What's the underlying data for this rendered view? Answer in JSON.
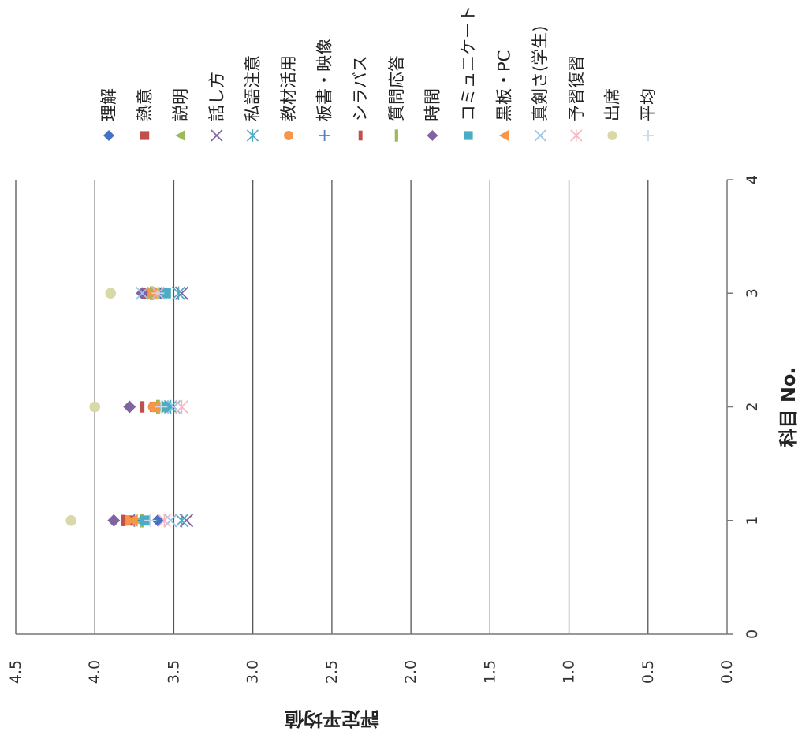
{
  "chart_data": {
    "type": "scatter",
    "orientation": "rotated-90-clockwise",
    "xlabel": "科目 No.",
    "ylabel": "評定平均値",
    "xlim": [
      0,
      4
    ],
    "ylim": [
      0,
      4.5
    ],
    "x_ticks": [
      "0",
      "1",
      "2",
      "3",
      "4"
    ],
    "y_ticks": [
      "0.0",
      "0.5",
      "1.0",
      "1.5",
      "2.0",
      "2.5",
      "3.0",
      "3.5",
      "4.0",
      "4.5"
    ],
    "grid": true,
    "legend_position": "right",
    "series": [
      {
        "name": "理解",
        "marker": "diamond",
        "color": "#4472C4",
        "x": [
          1,
          2,
          3
        ],
        "y": [
          3.6,
          3.55,
          3.58
        ]
      },
      {
        "name": "熱意",
        "marker": "square",
        "color": "#C0504D",
        "x": [
          1,
          2,
          3
        ],
        "y": [
          3.78,
          3.62,
          3.65
        ]
      },
      {
        "name": "説明",
        "marker": "triangle",
        "color": "#9BBB59",
        "x": [
          1,
          2,
          3
        ],
        "y": [
          3.72,
          3.6,
          3.62
        ]
      },
      {
        "name": "話し方",
        "marker": "x",
        "color": "#8064A2",
        "x": [
          1,
          2,
          3
        ],
        "y": [
          3.42,
          3.5,
          3.45
        ]
      },
      {
        "name": "私語注意",
        "marker": "star",
        "color": "#4BACC6",
        "x": [
          1,
          2,
          3
        ],
        "y": [
          3.45,
          3.52,
          3.47
        ]
      },
      {
        "name": "教材活用",
        "marker": "circle",
        "color": "#F79646",
        "x": [
          1,
          2,
          3
        ],
        "y": [
          3.8,
          3.63,
          3.66
        ]
      },
      {
        "name": "板書・映像",
        "marker": "plus",
        "color": "#4F81BD",
        "x": [
          1,
          2,
          3
        ],
        "y": [
          3.75,
          3.58,
          3.62
        ]
      },
      {
        "name": "シラバス",
        "marker": "dash-short",
        "color": "#C0504D",
        "x": [
          1,
          2,
          3
        ],
        "y": [
          3.82,
          3.7,
          3.68
        ]
      },
      {
        "name": "質問応答",
        "marker": "dash",
        "color": "#9BBB59",
        "x": [
          1,
          2,
          3
        ],
        "y": [
          3.7,
          3.6,
          3.64
        ]
      },
      {
        "name": "時間",
        "marker": "diamond",
        "color": "#8064A2",
        "x": [
          1,
          2,
          3
        ],
        "y": [
          3.88,
          3.78,
          3.7
        ]
      },
      {
        "name": "コミュニケート",
        "marker": "square",
        "color": "#4BACC6",
        "x": [
          1,
          2,
          3
        ],
        "y": [
          3.68,
          3.55,
          3.55
        ]
      },
      {
        "name": "黒板・PC",
        "marker": "triangle",
        "color": "#F79646",
        "x": [
          1,
          2,
          3
        ],
        "y": [
          3.76,
          3.62,
          3.63
        ]
      },
      {
        "name": "真剣さ(学生)",
        "marker": "x",
        "color": "#9DC3E6",
        "x": [
          1,
          2,
          3
        ],
        "y": [
          3.52,
          3.5,
          3.7
        ]
      },
      {
        "name": "予習復習",
        "marker": "star",
        "color": "#F4B6C2",
        "x": [
          1,
          2,
          3
        ],
        "y": [
          3.56,
          3.45,
          3.6
        ]
      },
      {
        "name": "出席",
        "marker": "circle",
        "color": "#D8D8A8",
        "x": [
          1,
          2,
          3
        ],
        "y": [
          4.15,
          4.0,
          3.9
        ]
      },
      {
        "name": "平均",
        "marker": "plus",
        "color": "#CCD6E8",
        "x": [
          1,
          2,
          3
        ],
        "y": [
          3.65,
          3.58,
          3.6
        ]
      }
    ]
  }
}
